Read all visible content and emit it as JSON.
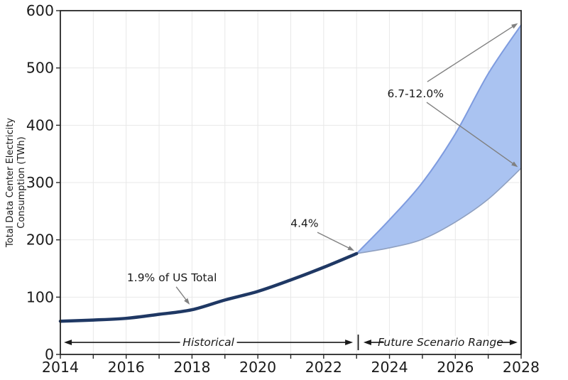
{
  "chart_data": {
    "type": "area",
    "title": "",
    "ylabel": "Total Data Center Electricity Consumption (TWh)",
    "ylabel_lines": [
      "Total Data Center Electricity",
      "Consumption (TWh)"
    ],
    "xlim": [
      2014,
      2028
    ],
    "ylim": [
      0,
      600
    ],
    "grid": true,
    "legend_position": "none",
    "x_major_ticks": [
      {
        "v": 2014,
        "label": "2014"
      },
      {
        "v": 2016,
        "label": "2016"
      },
      {
        "v": 2018,
        "label": "2018"
      },
      {
        "v": 2020,
        "label": "2020"
      },
      {
        "v": 2022,
        "label": "2022"
      },
      {
        "v": 2024,
        "label": "2024"
      },
      {
        "v": 2026,
        "label": "2026"
      },
      {
        "v": 2028,
        "label": "2028"
      }
    ],
    "x_minor_tick_years": [
      2015,
      2017,
      2019,
      2021,
      2023,
      2025,
      2027
    ],
    "y_ticks": [
      {
        "v": 0,
        "label": "0"
      },
      {
        "v": 100,
        "label": "100"
      },
      {
        "v": 200,
        "label": "200"
      },
      {
        "v": 300,
        "label": "300"
      },
      {
        "v": 400,
        "label": "400"
      },
      {
        "v": 500,
        "label": "500"
      },
      {
        "v": 600,
        "label": "600"
      }
    ],
    "series": [
      {
        "name": "Historical",
        "type": "line",
        "x": [
          2014,
          2015,
          2016,
          2017,
          2018,
          2019,
          2020,
          2021,
          2022,
          2023
        ],
        "y": [
          58,
          60,
          63,
          70,
          78,
          95,
          110,
          130,
          152,
          176
        ]
      },
      {
        "name": "Future Scenario Range",
        "type": "band",
        "x": [
          2023,
          2024,
          2025,
          2026,
          2027,
          2028
        ],
        "upper": [
          176,
          235,
          300,
          385,
          490,
          575
        ],
        "lower": [
          176,
          186,
          201,
          231,
          271,
          325
        ]
      }
    ],
    "annotations": [
      {
        "text": "1.9% of US Total",
        "tx": 2017.39,
        "ty": 134,
        "arrows": [
          {
            "x1": 2017.52,
            "y1": 118,
            "x2": 2017.93,
            "y2": 87
          }
        ]
      },
      {
        "text": "4.4%",
        "tx": 2021.42,
        "ty": 229,
        "arrows": [
          {
            "x1": 2021.81,
            "y1": 213,
            "x2": 2022.93,
            "y2": 181
          }
        ]
      },
      {
        "text": "6.7-12.0%",
        "tx": 2024.79,
        "ty": 455,
        "arrows": [
          {
            "x1": 2025.15,
            "y1": 476,
            "x2": 2027.9,
            "y2": 578
          },
          {
            "x1": 2025.13,
            "y1": 440,
            "x2": 2027.9,
            "y2": 327
          }
        ]
      }
    ],
    "range_arrows": [
      {
        "label": "Historical",
        "from": 2014.11,
        "to": 2022.89,
        "y": 21
      },
      {
        "label": "Future Scenario Range",
        "from": 2023.21,
        "to": 2027.89,
        "y": 21
      }
    ],
    "range_separator": {
      "x": 2023.05,
      "y": 21
    }
  },
  "colors": {
    "background": "#ffffff",
    "axis": "#262626",
    "grid": "#e8e8e8",
    "historical_line": "#1f3864",
    "band_fill": "#aac3f1",
    "band_upper_edge": "#7e9bdf",
    "band_lower_edge": "#8fa0c0",
    "annotation_arrow": "#808080",
    "range_arrow": "#1a1a1a",
    "text": "#1a1a1a"
  }
}
